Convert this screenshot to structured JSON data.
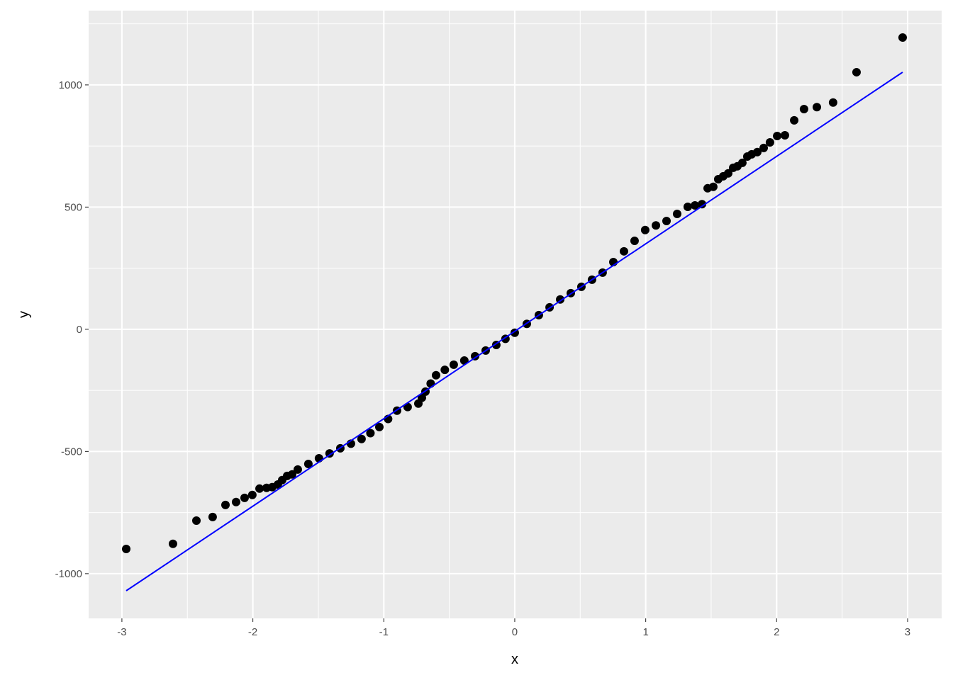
{
  "chart_data": {
    "type": "scatter",
    "title": "",
    "xlabel": "x",
    "ylabel": "y",
    "xlim": [
      -3.254,
      3.26
    ],
    "ylim": [
      -1183,
      1304
    ],
    "x_ticks": [
      -3,
      -2,
      -1,
      0,
      1,
      2,
      3
    ],
    "x_tick_labels": [
      "-3",
      "-2",
      "-1",
      "0",
      "1",
      "2",
      "3"
    ],
    "y_ticks": [
      -1000,
      -500,
      0,
      500,
      1000
    ],
    "y_tick_labels": [
      "-1000",
      "-500",
      "0",
      "500",
      "1000"
    ],
    "grid": true,
    "colors": {
      "panel": "#ebebeb",
      "grid": "#ffffff",
      "points": "#000000",
      "line": "#0000ff"
    },
    "points": [
      [
        -2.967,
        -899
      ],
      [
        -2.61,
        -878
      ],
      [
        -2.431,
        -783
      ],
      [
        -2.307,
        -768
      ],
      [
        -2.209,
        -719
      ],
      [
        -2.128,
        -707
      ],
      [
        -2.063,
        -690
      ],
      [
        -2.004,
        -678
      ],
      [
        -1.949,
        -652
      ],
      [
        -1.895,
        -649
      ],
      [
        -1.852,
        -646
      ],
      [
        -1.809,
        -635
      ],
      [
        -1.776,
        -617
      ],
      [
        -1.738,
        -600
      ],
      [
        -1.7,
        -594
      ],
      [
        -1.657,
        -574
      ],
      [
        -1.576,
        -551
      ],
      [
        -1.495,
        -528
      ],
      [
        -1.414,
        -508
      ],
      [
        -1.332,
        -487
      ],
      [
        -1.251,
        -468
      ],
      [
        -1.17,
        -449
      ],
      [
        -1.102,
        -425
      ],
      [
        -1.034,
        -400
      ],
      [
        -0.967,
        -367
      ],
      [
        -0.899,
        -333
      ],
      [
        -0.818,
        -318
      ],
      [
        -0.736,
        -304
      ],
      [
        -0.709,
        -280
      ],
      [
        -0.682,
        -255
      ],
      [
        -0.642,
        -222
      ],
      [
        -0.601,
        -188
      ],
      [
        -0.534,
        -166
      ],
      [
        -0.466,
        -145
      ],
      [
        -0.385,
        -128
      ],
      [
        -0.303,
        -110
      ],
      [
        -0.222,
        -87
      ],
      [
        -0.141,
        -64
      ],
      [
        -0.071,
        -39
      ],
      [
        0,
        -14
      ],
      [
        0.092,
        22
      ],
      [
        0.184,
        58
      ],
      [
        0.266,
        90
      ],
      [
        0.347,
        122
      ],
      [
        0.428,
        148
      ],
      [
        0.509,
        174
      ],
      [
        0.59,
        203
      ],
      [
        0.671,
        232
      ],
      [
        0.753,
        275
      ],
      [
        0.834,
        319
      ],
      [
        0.915,
        362
      ],
      [
        0.996,
        406
      ],
      [
        1.078,
        425
      ],
      [
        1.159,
        443
      ],
      [
        1.24,
        472
      ],
      [
        1.321,
        501
      ],
      [
        1.376,
        507
      ],
      [
        1.43,
        512
      ],
      [
        1.473,
        577
      ],
      [
        1.516,
        583
      ],
      [
        1.554,
        614
      ],
      [
        1.592,
        626
      ],
      [
        1.63,
        638
      ],
      [
        1.668,
        661
      ],
      [
        1.7,
        667
      ],
      [
        1.738,
        681
      ],
      [
        1.776,
        707
      ],
      [
        1.809,
        716
      ],
      [
        1.852,
        725
      ],
      [
        1.901,
        742
      ],
      [
        1.949,
        765
      ],
      [
        2.004,
        791
      ],
      [
        2.063,
        794
      ],
      [
        2.134,
        855
      ],
      [
        2.209,
        901
      ],
      [
        2.307,
        909
      ],
      [
        2.431,
        928
      ],
      [
        2.61,
        1052
      ],
      [
        2.962,
        1194
      ]
    ],
    "reference_line": {
      "x": [
        -2.967,
        2.962
      ],
      "y": [
        -1070,
        1052
      ]
    }
  }
}
